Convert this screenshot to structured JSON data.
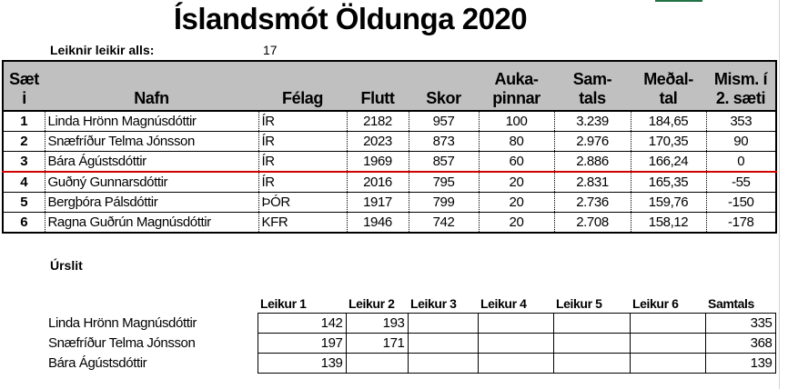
{
  "title": "Íslandsmót Öldunga 2020",
  "games_played": {
    "label": "Leiknir leikir alls:",
    "value": "17"
  },
  "standings": {
    "headers": [
      {
        "line1": "Sæt",
        "line2": "i"
      },
      {
        "line1": "",
        "line2": "Nafn"
      },
      {
        "line1": "",
        "line2": "Félag"
      },
      {
        "line1": "",
        "line2": "Flutt"
      },
      {
        "line1": "",
        "line2": "Skor"
      },
      {
        "line1": "Auka-",
        "line2": "pinnar"
      },
      {
        "line1": "Sam-",
        "line2": "tals"
      },
      {
        "line1": "Meðal-",
        "line2": "tal"
      },
      {
        "line1": "Mism. í",
        "line2": "2. sæti"
      }
    ],
    "rows": [
      [
        "1",
        "Linda Hrönn Magnúsdóttir",
        "ÍR",
        "2182",
        "957",
        "100",
        "3.239",
        "184,65",
        "353"
      ],
      [
        "2",
        "Snæfríður Telma Jónsson",
        "ÍR",
        "2023",
        "873",
        "80",
        "2.976",
        "170,35",
        "90"
      ],
      [
        "3",
        "Bára Ágústsdóttir",
        "ÍR",
        "1969",
        "857",
        "60",
        "2.886",
        "166,24",
        "0"
      ],
      [
        "4",
        "Guðný Gunnarsdóttir",
        "ÍR",
        "2016",
        "795",
        "20",
        "2.831",
        "165,35",
        "-55"
      ],
      [
        "5",
        "Bergþóra Pálsdóttir",
        "ÞÓR",
        "1917",
        "799",
        "20",
        "2.736",
        "159,76",
        "-150"
      ],
      [
        "6",
        "Ragna Guðrún Magnúsdóttir",
        "KFR",
        "1946",
        "742",
        "20",
        "2.708",
        "158,12",
        "-178"
      ]
    ],
    "cutoff_color": "#d00000",
    "header_bg": "#c0c0c0"
  },
  "results": {
    "label": "Úrslit",
    "headers": [
      "Leikur 1",
      "Leikur 2",
      "Leikur 3",
      "Leikur 4",
      "Leikur 5",
      "Leikur 6",
      "Samtals"
    ],
    "rows": [
      {
        "name": "Linda Hrönn Magnúsdóttir",
        "values": [
          "142",
          "193",
          "",
          "",
          "",
          "",
          "335"
        ]
      },
      {
        "name": "Snæfríður Telma Jónsson",
        "values": [
          "197",
          "171",
          "",
          "",
          "",
          "",
          "368"
        ]
      },
      {
        "name": "Bára Ágústsdóttir",
        "values": [
          "139",
          "",
          "",
          "",
          "",
          "",
          "139"
        ]
      }
    ]
  }
}
